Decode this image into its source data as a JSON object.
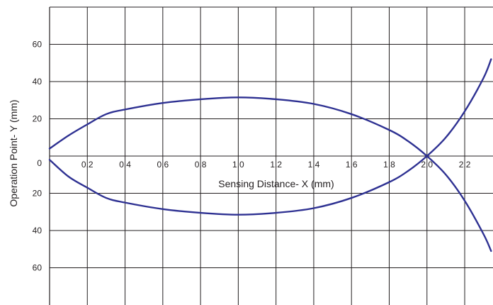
{
  "colors": {
    "curve": "#2e3192",
    "grid": "#231f20",
    "text": "#231f20"
  },
  "chart_data": {
    "type": "line",
    "title": "",
    "xlabel": "Sensing Distance- X (mm)",
    "ylabel": "Operation Point- Y (mm)",
    "xlim": [
      0,
      2.35
    ],
    "ylim": [
      -80,
      80
    ],
    "grid": true,
    "x_ticks": [
      {
        "value": 0.2,
        "label": "0.2"
      },
      {
        "value": 0.4,
        "label": "0.4"
      },
      {
        "value": 0.6,
        "label": "0.6"
      },
      {
        "value": 0.8,
        "label": "0.8"
      },
      {
        "value": 1.0,
        "label": "1.0"
      },
      {
        "value": 1.2,
        "label": "1.2"
      },
      {
        "value": 1.4,
        "label": "1.4"
      },
      {
        "value": 1.6,
        "label": "1.6"
      },
      {
        "value": 1.8,
        "label": "1.8"
      },
      {
        "value": 2.0,
        "label": "2.0"
      },
      {
        "value": 2.2,
        "label": "2.2"
      }
    ],
    "y_ticks": [
      {
        "value": 60,
        "label": "60"
      },
      {
        "value": 40,
        "label": "40"
      },
      {
        "value": 20,
        "label": "20"
      },
      {
        "value": 0,
        "label": "0"
      },
      {
        "value": -20,
        "label": "20"
      },
      {
        "value": -40,
        "label": "40"
      },
      {
        "value": -60,
        "label": "60"
      }
    ],
    "series": [
      {
        "x": [
          0.0,
          0.1,
          0.2,
          0.3,
          0.4,
          0.6,
          0.8,
          1.0,
          1.2,
          1.4,
          1.6,
          1.8,
          1.9,
          2.0,
          2.1,
          2.2,
          2.3,
          2.34
        ],
        "y": [
          4,
          11,
          17,
          22.5,
          25,
          28.5,
          30.5,
          31.5,
          30.5,
          28,
          22.5,
          14,
          8,
          0,
          -10,
          -24,
          -42,
          -51
        ]
      },
      {
        "x": [
          0.0,
          0.1,
          0.2,
          0.3,
          0.4,
          0.6,
          0.8,
          1.0,
          1.2,
          1.4,
          1.6,
          1.8,
          1.9,
          2.0,
          2.1,
          2.2,
          2.3,
          2.34
        ],
        "y": [
          -2,
          -11,
          -17,
          -22.5,
          -25,
          -28.5,
          -30.5,
          -31.5,
          -30.5,
          -28,
          -22.5,
          -14,
          -8,
          0,
          10,
          24,
          42,
          52
        ]
      }
    ]
  }
}
